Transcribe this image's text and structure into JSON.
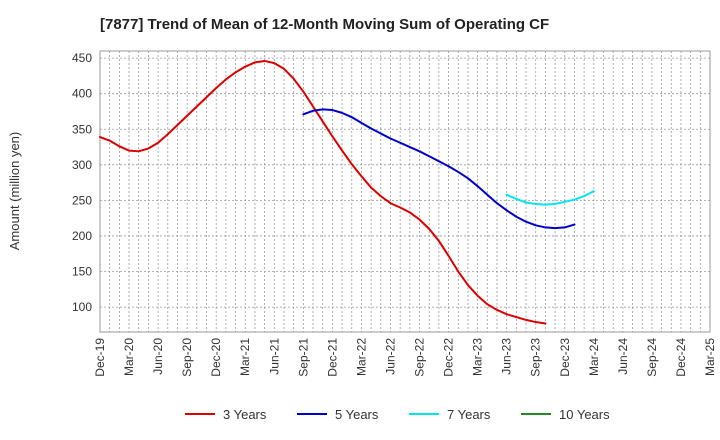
{
  "chart_data": {
    "type": "line",
    "title": "[7877]  Trend of Mean of 12-Month Moving Sum of Operating CF",
    "ylabel": "Amount (million yen)",
    "xlabel": "",
    "ylim": [
      65,
      460
    ],
    "yticks": [
      100,
      150,
      200,
      250,
      300,
      350,
      400,
      450
    ],
    "xticks": [
      "Dec-19",
      "Mar-20",
      "Jun-20",
      "Sep-20",
      "Dec-20",
      "Mar-21",
      "Jun-21",
      "Sep-21",
      "Dec-21",
      "Mar-22",
      "Jun-22",
      "Sep-22",
      "Dec-22",
      "Mar-23",
      "Jun-23",
      "Sep-23",
      "Dec-23",
      "Mar-24",
      "Jun-24",
      "Sep-24",
      "Dec-24",
      "Mar-25"
    ],
    "grid": true,
    "legend_position": "bottom",
    "series": [
      {
        "name": "3 Years",
        "color": "#dd0000",
        "points": [
          [
            0,
            339
          ],
          [
            1,
            334
          ],
          [
            2,
            326
          ],
          [
            3,
            320
          ],
          [
            4,
            319
          ],
          [
            5,
            323
          ],
          [
            6,
            331
          ],
          [
            7,
            343
          ],
          [
            8,
            356
          ],
          [
            9,
            369
          ],
          [
            10,
            382
          ],
          [
            11,
            395
          ],
          [
            12,
            408
          ],
          [
            13,
            420
          ],
          [
            14,
            430
          ],
          [
            15,
            438
          ],
          [
            16,
            444
          ],
          [
            17,
            446
          ],
          [
            18,
            443
          ],
          [
            19,
            435
          ],
          [
            20,
            421
          ],
          [
            21,
            403
          ],
          [
            22,
            382
          ],
          [
            23,
            361
          ],
          [
            24,
            340
          ],
          [
            25,
            320
          ],
          [
            26,
            301
          ],
          [
            27,
            284
          ],
          [
            28,
            268
          ],
          [
            29,
            256
          ],
          [
            30,
            246
          ],
          [
            31,
            240
          ],
          [
            32,
            233
          ],
          [
            33,
            223
          ],
          [
            34,
            210
          ],
          [
            35,
            193
          ],
          [
            36,
            172
          ],
          [
            37,
            150
          ],
          [
            38,
            131
          ],
          [
            39,
            116
          ],
          [
            40,
            104
          ],
          [
            41,
            96
          ],
          [
            42,
            90
          ],
          [
            43,
            86
          ],
          [
            44,
            82
          ],
          [
            45,
            79
          ],
          [
            46,
            77
          ]
        ]
      },
      {
        "name": "5 Years",
        "color": "#0000cc",
        "points": [
          [
            21,
            371
          ],
          [
            22,
            376
          ],
          [
            23,
            378
          ],
          [
            24,
            377
          ],
          [
            25,
            373
          ],
          [
            26,
            367
          ],
          [
            27,
            359
          ],
          [
            28,
            351
          ],
          [
            29,
            344
          ],
          [
            30,
            337
          ],
          [
            31,
            331
          ],
          [
            32,
            325
          ],
          [
            33,
            319
          ],
          [
            34,
            312
          ],
          [
            35,
            305
          ],
          [
            36,
            298
          ],
          [
            37,
            290
          ],
          [
            38,
            281
          ],
          [
            39,
            270
          ],
          [
            40,
            258
          ],
          [
            41,
            246
          ],
          [
            42,
            236
          ],
          [
            43,
            227
          ],
          [
            44,
            220
          ],
          [
            45,
            215
          ],
          [
            46,
            212
          ],
          [
            47,
            211
          ],
          [
            48,
            212
          ],
          [
            49,
            216
          ]
        ]
      },
      {
        "name": "7 Years",
        "color": "#00e5ee",
        "points": [
          [
            42,
            258
          ],
          [
            43,
            252
          ],
          [
            44,
            247
          ],
          [
            45,
            245
          ],
          [
            46,
            244
          ],
          [
            47,
            245
          ],
          [
            48,
            248
          ],
          [
            49,
            251
          ],
          [
            50,
            256
          ],
          [
            51,
            263
          ]
        ]
      },
      {
        "name": "10 Years",
        "color": "#228b22",
        "points": []
      }
    ]
  }
}
